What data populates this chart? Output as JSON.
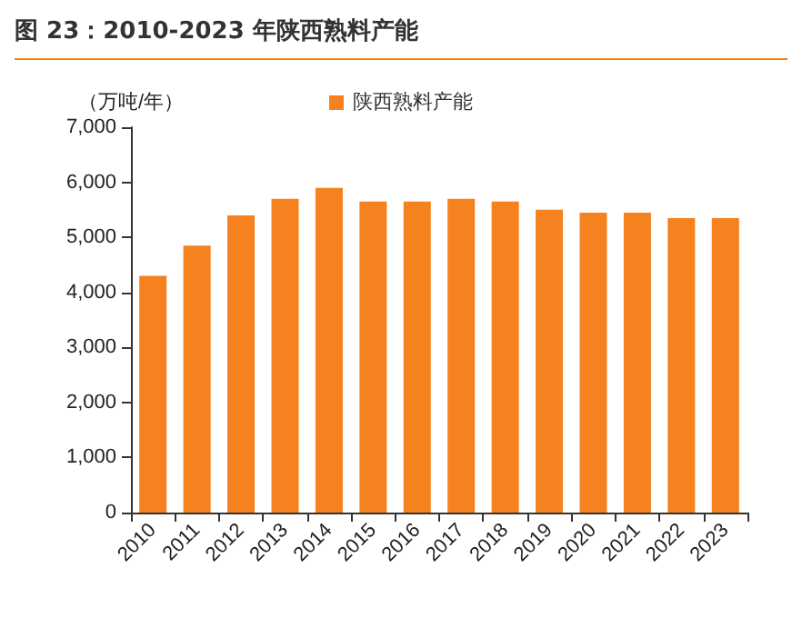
{
  "chart_data": {
    "type": "bar",
    "title": "图 23：2010-2023 年陕西熟料产能",
    "ylabel": "（万吨/年）",
    "categories": [
      "2010",
      "2011",
      "2012",
      "2013",
      "2014",
      "2015",
      "2016",
      "2017",
      "2018",
      "2019",
      "2020",
      "2021",
      "2022",
      "2023"
    ],
    "series": [
      {
        "name": "陕西熟料产能",
        "color": "#f5821f",
        "values": [
          4300,
          4850,
          5400,
          5700,
          5900,
          5650,
          5650,
          5700,
          5650,
          5500,
          5450,
          5450,
          5350,
          5350
        ]
      }
    ],
    "ylim": [
      0,
      7000
    ],
    "yticks": [
      {
        "value": 0,
        "label": "0"
      },
      {
        "value": 1000,
        "label": "1,000"
      },
      {
        "value": 2000,
        "label": "2,000"
      },
      {
        "value": 3000,
        "label": "3,000"
      },
      {
        "value": 4000,
        "label": "4,000"
      },
      {
        "value": 5000,
        "label": "5,000"
      },
      {
        "value": 6000,
        "label": "6,000"
      },
      {
        "value": 7000,
        "label": "7,000"
      }
    ],
    "grid": false,
    "legend": "top"
  }
}
